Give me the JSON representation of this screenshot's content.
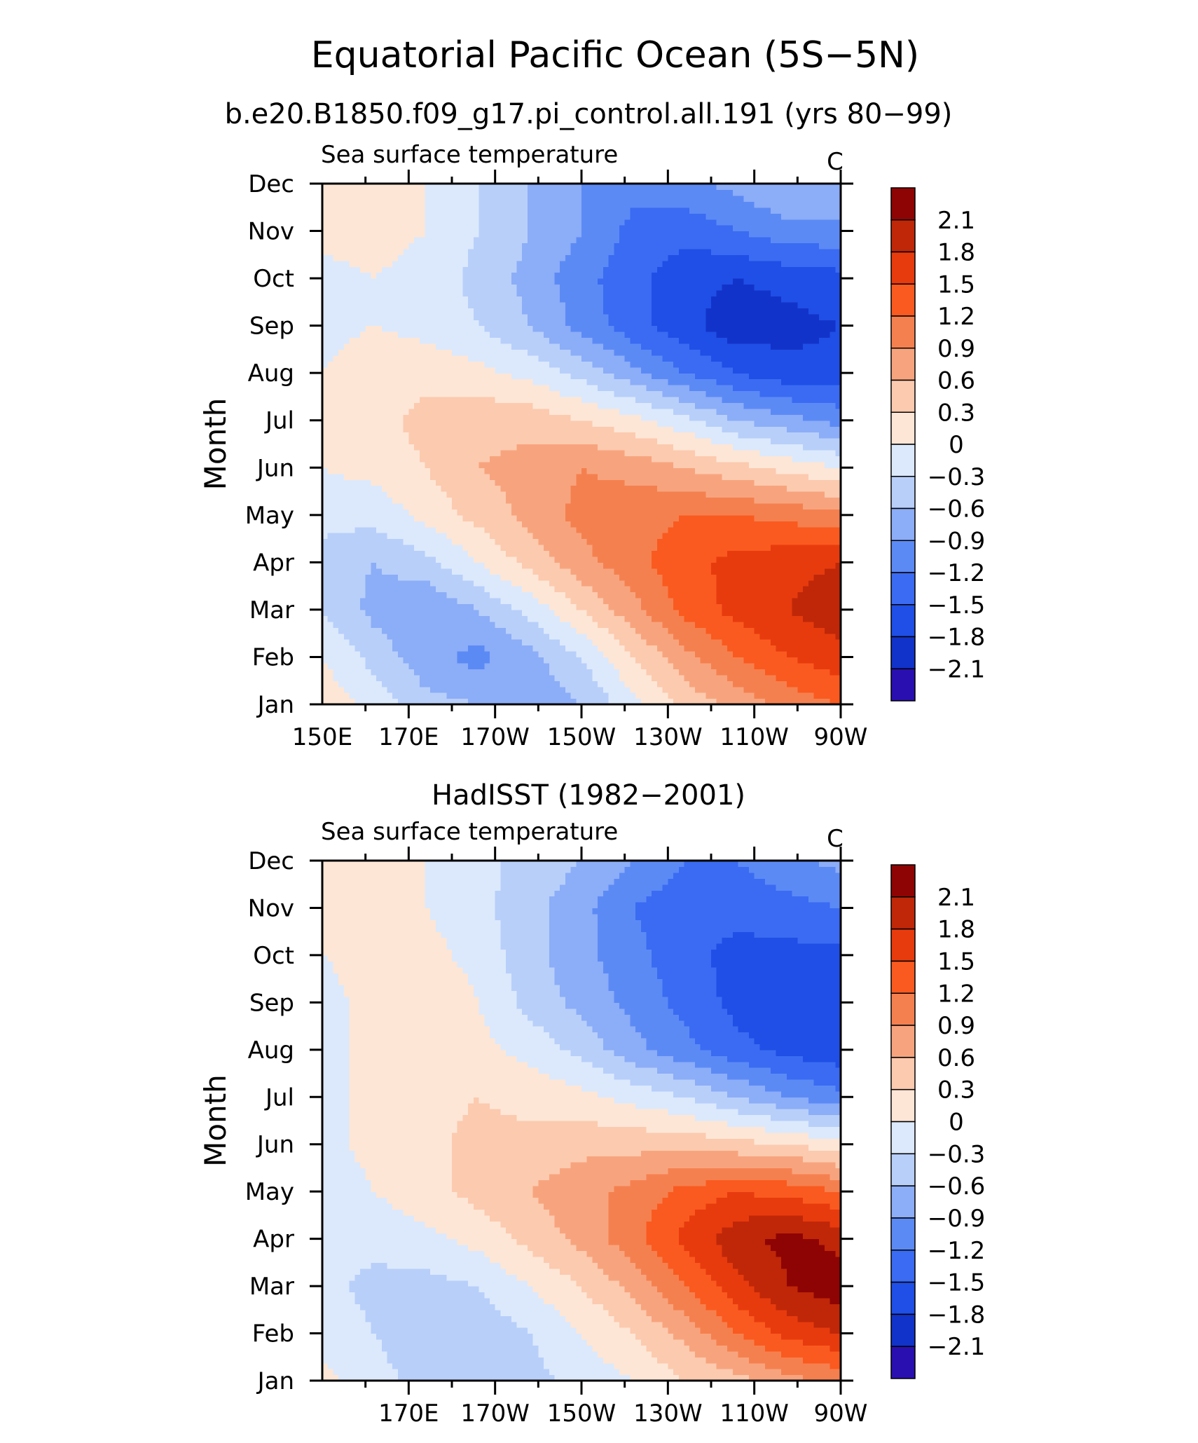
{
  "title": "Equatorial Pacific Ocean (5S−5N)",
  "subtitle": "b.e20.B1850.f09_g17.pi_control.all.191 (yrs 80−99)",
  "colormap": [
    "#2a0fb0",
    "#1233c9",
    "#1f4fe6",
    "#3a6bf2",
    "#5c8af5",
    "#8cadf7",
    "#b8cffa",
    "#dce9fc",
    "#fde6d6",
    "#fccaaf",
    "#f7a47e",
    "#f5804f",
    "#fa5a1f",
    "#e73b0e",
    "#bf2708",
    "#8e0404"
  ],
  "chart_data": [
    {
      "type": "heatmap",
      "panel_title": "",
      "left_label": "Sea surface temperature",
      "right_label": "C",
      "ylabel": "Month",
      "xlabel": "",
      "x_ticks": [
        "150E",
        "170E",
        "170W",
        "150W",
        "130W",
        "110W",
        "90W"
      ],
      "y_ticks": [
        "Jan",
        "Feb",
        "Mar",
        "Apr",
        "May",
        "Jun",
        "Jul",
        "Aug",
        "Sep",
        "Oct",
        "Nov",
        "Dec"
      ],
      "xlim": [
        150,
        270
      ],
      "ylim": [
        1,
        12
      ],
      "levels": [
        -2.1,
        -1.8,
        -1.5,
        -1.2,
        -0.9,
        -0.6,
        -0.3,
        0,
        0.3,
        0.6,
        0.9,
        1.2,
        1.5,
        1.8,
        2.1
      ],
      "colorbar_labels": [
        "2.1",
        "1.8",
        "1.5",
        "1.2",
        "0.9",
        "0.6",
        "0.3",
        "0",
        "−0.3",
        "−0.6",
        "−0.9",
        "−1.2",
        "−1.5",
        "−1.8",
        "−2.1"
      ],
      "x": [
        150,
        162,
        174,
        186,
        198,
        210,
        222,
        234,
        246,
        258,
        270
      ],
      "months": [
        1,
        2,
        3,
        4,
        5,
        6,
        7,
        8,
        9,
        10,
        11,
        12
      ],
      "values": [
        [
          0.2,
          -0.1,
          -0.5,
          -0.6,
          -0.8,
          -0.6,
          -0.1,
          0.4,
          0.7,
          1.0,
          1.2
        ],
        [
          0.0,
          -0.4,
          -0.8,
          -1.0,
          -0.7,
          -0.3,
          0.3,
          0.8,
          1.2,
          1.5,
          1.7
        ],
        [
          -0.3,
          -0.7,
          -0.9,
          -0.6,
          -0.2,
          0.3,
          0.8,
          1.3,
          1.6,
          1.8,
          2.0
        ],
        [
          -0.4,
          -0.6,
          -0.4,
          0.0,
          0.4,
          0.8,
          1.1,
          1.4,
          1.6,
          1.7,
          1.8
        ],
        [
          -0.2,
          -0.2,
          0.1,
          0.4,
          0.7,
          1.0,
          1.1,
          1.2,
          1.2,
          1.1,
          1.0
        ],
        [
          0.0,
          0.1,
          0.3,
          0.6,
          0.7,
          0.9,
          0.8,
          0.6,
          0.4,
          0.2,
          0.0
        ],
        [
          0.0,
          0.2,
          0.4,
          0.5,
          0.5,
          0.3,
          0.1,
          -0.2,
          -0.6,
          -0.8,
          -1.0
        ],
        [
          0.0,
          0.2,
          0.2,
          0.1,
          -0.1,
          -0.4,
          -0.8,
          -1.2,
          -1.5,
          -1.7,
          -1.7
        ],
        [
          -0.1,
          0.0,
          -0.1,
          -0.3,
          -0.6,
          -1.0,
          -1.4,
          -1.7,
          -2.0,
          -1.9,
          -1.8
        ],
        [
          -0.1,
          0.0,
          -0.1,
          -0.4,
          -0.7,
          -1.1,
          -1.4,
          -1.7,
          -1.8,
          -1.7,
          -1.6
        ],
        [
          0.1,
          0.1,
          0.0,
          -0.3,
          -0.6,
          -0.9,
          -1.3,
          -1.4,
          -1.2,
          -1.0,
          -1.0
        ],
        [
          0.2,
          0.2,
          0.0,
          -0.3,
          -0.6,
          -0.9,
          -1.1,
          -1.0,
          -0.8,
          -0.6,
          -0.6
        ]
      ]
    },
    {
      "type": "heatmap",
      "panel_title": "HadISST (1982−2001)",
      "left_label": "Sea surface temperature",
      "right_label": "C",
      "ylabel": "Month",
      "xlabel": "",
      "x_ticks": [
        "170E",
        "170W",
        "150W",
        "130W",
        "110W",
        "90W"
      ],
      "y_ticks": [
        "Jan",
        "Feb",
        "Mar",
        "Apr",
        "May",
        "Jun",
        "Jul",
        "Aug",
        "Sep",
        "Oct",
        "Nov",
        "Dec"
      ],
      "xlim": [
        150,
        270
      ],
      "ylim": [
        1,
        12
      ],
      "levels": [
        -2.1,
        -1.8,
        -1.5,
        -1.2,
        -0.9,
        -0.6,
        -0.3,
        0,
        0.3,
        0.6,
        0.9,
        1.2,
        1.5,
        1.8,
        2.1
      ],
      "colorbar_labels": [
        "2.1",
        "1.8",
        "1.5",
        "1.2",
        "0.9",
        "0.6",
        "0.3",
        "0",
        "−0.3",
        "−0.6",
        "−0.9",
        "−1.2",
        "−1.5",
        "−1.8",
        "−2.1"
      ],
      "x": [
        150,
        162,
        174,
        186,
        198,
        210,
        222,
        234,
        246,
        258,
        270
      ],
      "months": [
        1,
        2,
        3,
        4,
        5,
        6,
        7,
        8,
        9,
        10,
        11,
        12
      ],
      "values": [
        [
          0.1,
          -0.2,
          -0.4,
          -0.5,
          -0.4,
          -0.2,
          0.0,
          0.3,
          0.5,
          0.8,
          1.0
        ],
        [
          -0.1,
          -0.3,
          -0.5,
          -0.5,
          -0.3,
          0.0,
          0.3,
          0.7,
          1.2,
          1.6,
          1.8
        ],
        [
          -0.2,
          -0.4,
          -0.4,
          -0.3,
          0.0,
          0.3,
          0.7,
          1.2,
          1.7,
          2.1,
          2.3
        ],
        [
          -0.2,
          -0.2,
          -0.1,
          0.1,
          0.4,
          0.7,
          1.1,
          1.6,
          2.0,
          2.2,
          2.0
        ],
        [
          -0.2,
          0.0,
          0.2,
          0.4,
          0.6,
          0.8,
          1.0,
          1.3,
          1.5,
          1.4,
          1.2
        ],
        [
          -0.1,
          0.1,
          0.2,
          0.4,
          0.4,
          0.5,
          0.5,
          0.5,
          0.4,
          0.3,
          0.1
        ],
        [
          -0.1,
          0.1,
          0.2,
          0.3,
          0.2,
          0.1,
          -0.1,
          -0.3,
          -0.6,
          -0.9,
          -1.1
        ],
        [
          -0.1,
          0.1,
          0.2,
          0.1,
          -0.1,
          -0.4,
          -0.8,
          -1.1,
          -1.4,
          -1.6,
          -1.7
        ],
        [
          -0.1,
          0.1,
          0.3,
          0.0,
          -0.4,
          -0.7,
          -1.0,
          -1.3,
          -1.6,
          -1.8,
          -1.8
        ],
        [
          0.0,
          0.1,
          0.1,
          -0.1,
          -0.5,
          -0.8,
          -1.1,
          -1.4,
          -1.6,
          -1.6,
          -1.6
        ],
        [
          0.0,
          0.1,
          0.0,
          -0.2,
          -0.5,
          -0.8,
          -1.2,
          -1.4,
          -1.4,
          -1.3,
          -1.2
        ],
        [
          0.1,
          0.1,
          0.0,
          -0.2,
          -0.4,
          -0.6,
          -0.9,
          -1.2,
          -1.2,
          -1.0,
          -0.8
        ]
      ]
    }
  ]
}
